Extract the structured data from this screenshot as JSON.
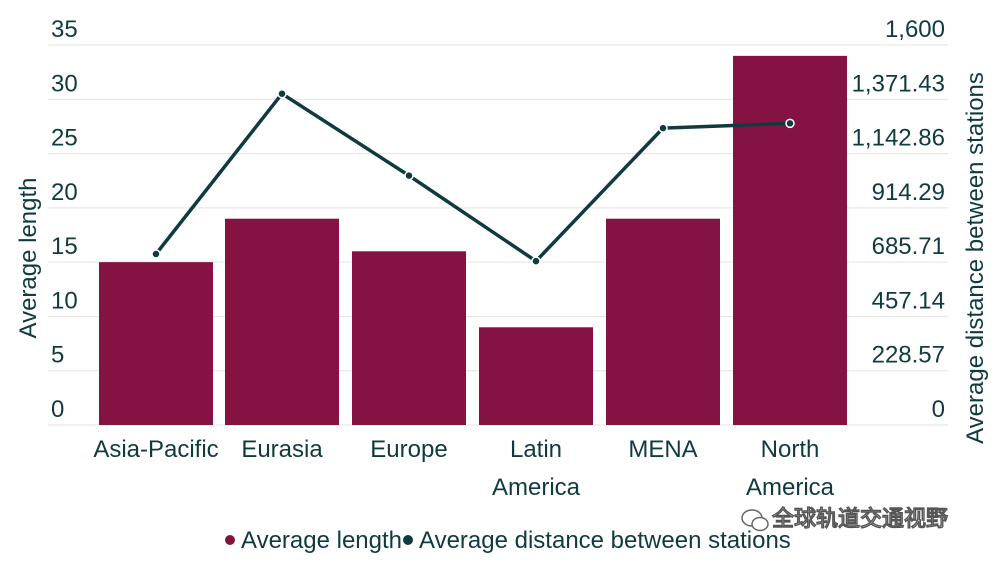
{
  "chart_data": {
    "type": "bar",
    "categories": [
      [
        "Asia-Pacific"
      ],
      [
        "Eurasia"
      ],
      [
        "Europe"
      ],
      [
        "Latin",
        "America"
      ],
      [
        "MENA"
      ],
      [
        "North",
        "America"
      ]
    ],
    "series": [
      {
        "name": "Average length",
        "kind": "bar",
        "axis": "left",
        "color": "#841341",
        "values": [
          15,
          19,
          16,
          9,
          19,
          34
        ]
      },
      {
        "name": "Average distance between stations",
        "kind": "line",
        "axis": "right",
        "color": "#0f3b40",
        "values": [
          720,
          1395,
          1050,
          690,
          1250,
          1270
        ]
      }
    ],
    "y_left": {
      "label": "Average length",
      "ylim": [
        0,
        35
      ],
      "ticks": [
        "0",
        "5",
        "10",
        "15",
        "20",
        "25",
        "30",
        "35"
      ]
    },
    "y_right": {
      "label": "Average distance between stations",
      "ylim": [
        0,
        1600
      ],
      "ticks": [
        "0",
        "228.57",
        "457.14",
        "685.71",
        "914.29",
        "1,142.86",
        "1,371.43",
        "1,600"
      ]
    },
    "grid": true,
    "legend_position": "bottom-center"
  },
  "watermark": {
    "text": "全球轨道交通视野"
  }
}
